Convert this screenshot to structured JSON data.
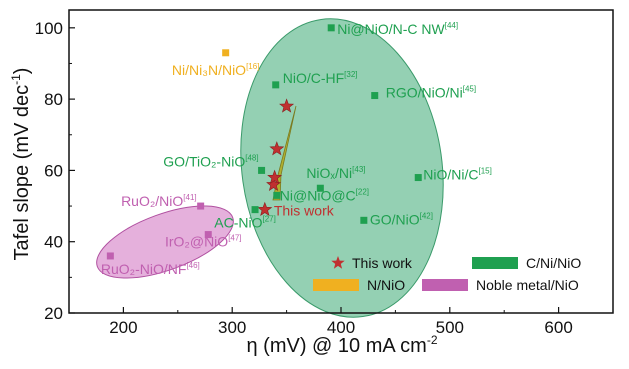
{
  "chart_data": {
    "type": "scatter",
    "xlabel": "η (mV) @ 10 mA cm",
    "xlabel_sup": "-2",
    "ylabel": "Tafel slope (mV dec",
    "ylabel_sup": "-1",
    "ylabel_end": ")",
    "xlim": [
      150,
      650
    ],
    "ylim": [
      20,
      105
    ],
    "xticks": [
      200,
      300,
      400,
      500,
      600
    ],
    "yticks": [
      20,
      40,
      60,
      80,
      100
    ],
    "xtick_labels": [
      "200",
      "300",
      "400",
      "500",
      "600"
    ],
    "ytick_labels": [
      "20",
      "40",
      "60",
      "80",
      "100"
    ],
    "grid": false,
    "legend_position": "bottom-right",
    "colors": {
      "c_ni_nio": "#1fa050",
      "n_nio": "#f0b020",
      "noble": "#c060b0",
      "this_work": "#c03030",
      "ellipse_green": "#4cb080",
      "ellipse_pink": "#d070c0",
      "arrow": "#b0b030"
    },
    "series": [
      {
        "name": "This work",
        "marker": "star",
        "points": [
          {
            "x": 330,
            "y": 49,
            "label": "This work"
          },
          {
            "x": 338,
            "y": 56
          },
          {
            "x": 339,
            "y": 58
          },
          {
            "x": 341,
            "y": 66
          },
          {
            "x": 350,
            "y": 78
          }
        ]
      },
      {
        "name": "C/Ni/NiO",
        "marker": "square",
        "points": [
          {
            "x": 391,
            "y": 100,
            "label": "Ni@NiO/N-C NW",
            "ref": "[44]"
          },
          {
            "x": 340,
            "y": 84,
            "label": "NiO/C-HF",
            "ref": "[32]"
          },
          {
            "x": 431,
            "y": 81,
            "label": "RGO/NiO/Ni",
            "ref": "[45]"
          },
          {
            "x": 327,
            "y": 60,
            "label": "GO/TiO₂-NiO",
            "ref": "[48]"
          },
          {
            "x": 381,
            "y": 55,
            "label": "NiOₓ/Ni",
            "ref": "[43]"
          },
          {
            "x": 471,
            "y": 58,
            "label": "NiO/Ni/C",
            "ref": "[15]"
          },
          {
            "x": 341,
            "y": 53,
            "label": "Ni@NiO@C",
            "ref": "[22]"
          },
          {
            "x": 421,
            "y": 46,
            "label": "GO/NiO",
            "ref": "[42]"
          },
          {
            "x": 321,
            "y": 49,
            "label": "AC-NiO",
            "ref": "[27]"
          }
        ]
      },
      {
        "name": "N/NiO",
        "marker": "square",
        "points": [
          {
            "x": 294,
            "y": 93,
            "label": "Ni/Ni₃N/NiO",
            "ref": "[16]"
          }
        ]
      },
      {
        "name": "Noble metal/NiO",
        "marker": "square",
        "points": [
          {
            "x": 271,
            "y": 50,
            "label": "RuO₂/NiO",
            "ref": "[41]"
          },
          {
            "x": 278,
            "y": 42,
            "label": "IrO₂@NiO",
            "ref": "[47]"
          },
          {
            "x": 188,
            "y": 36,
            "label": "RuO₂-NiO/NF",
            "ref": "[46]"
          }
        ]
      }
    ],
    "legend": [
      {
        "label": "This work",
        "symbol": "star"
      },
      {
        "label": "C/Ni/NiO",
        "symbol": "bar-green"
      },
      {
        "label": "N/NiO",
        "symbol": "bar-yellow"
      },
      {
        "label": "Noble metal/NiO",
        "symbol": "bar-pink"
      }
    ]
  }
}
